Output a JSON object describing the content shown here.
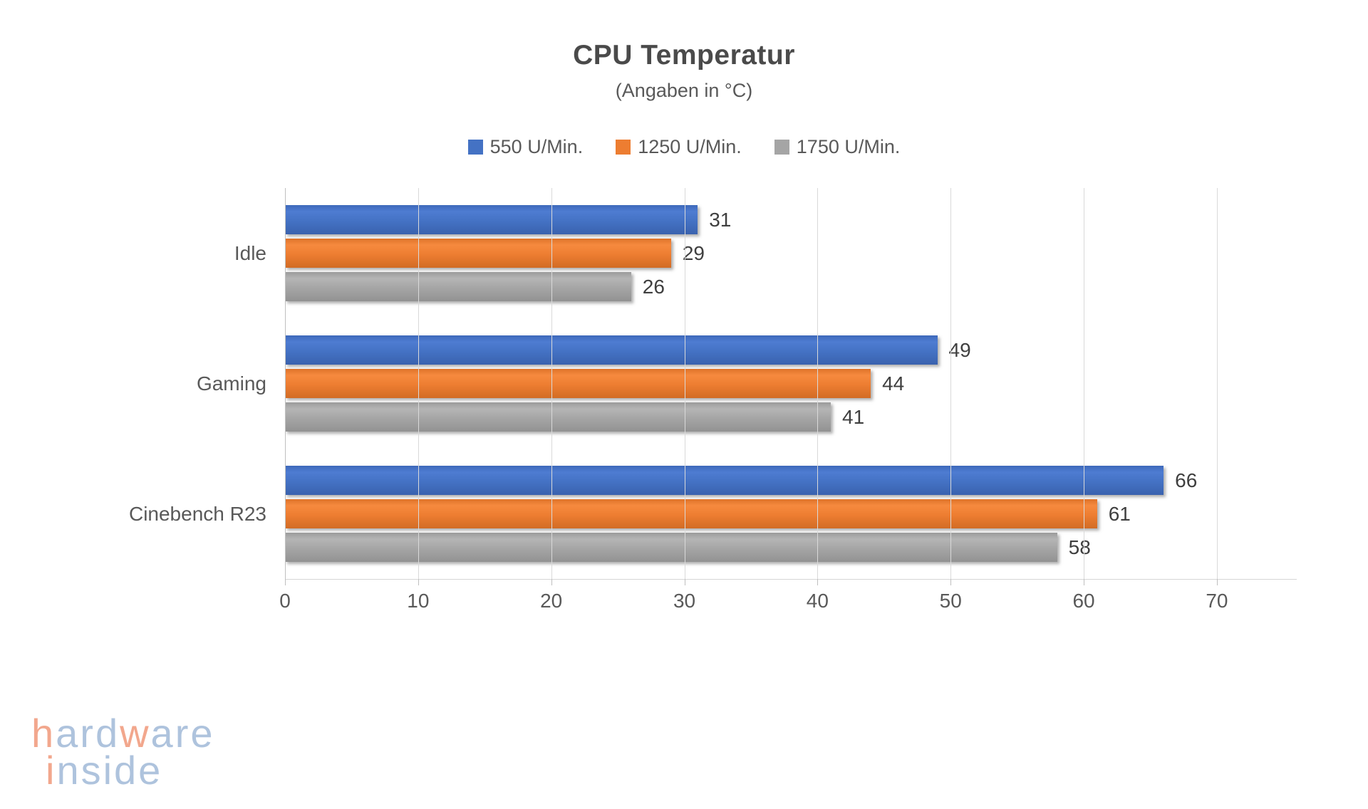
{
  "chart_data": {
    "type": "bar",
    "orientation": "horizontal",
    "title": "CPU Temperatur",
    "subtitle": "(Angaben in °C)",
    "categories": [
      "Idle",
      "Gaming",
      "Cinebench R23"
    ],
    "series": [
      {
        "name": "550 U/Min.",
        "color": "#4472C4",
        "gradient": {
          "top": "#3D69BA",
          "mid": "#4E7CD2",
          "base": "#4472C4",
          "bottom": "#3A62AE"
        },
        "values": [
          31,
          49,
          66
        ]
      },
      {
        "name": "1250 U/Min.",
        "color": "#ED7D31",
        "gradient": {
          "top": "#DE7329",
          "mid": "#F68A3F",
          "base": "#ED7D31",
          "bottom": "#D26C25"
        },
        "values": [
          29,
          44,
          61
        ]
      },
      {
        "name": "1750 U/Min.",
        "color": "#A5A5A5",
        "gradient": {
          "top": "#9B9B9B",
          "mid": "#B5B5B5",
          "base": "#A5A5A5",
          "bottom": "#929292"
        },
        "values": [
          26,
          41,
          58
        ]
      }
    ],
    "ticks": [
      0,
      10,
      20,
      30,
      40,
      50,
      60,
      70
    ],
    "xlim": [
      0,
      70
    ],
    "axis_extent": 76,
    "grid": true,
    "legend_position": "top",
    "value_labels": true,
    "gridline_color": "#D9D9D9"
  },
  "logo": {
    "line1": [
      {
        "text": "h",
        "color": "salmon"
      },
      {
        "text": "ard",
        "color": "blue"
      },
      {
        "text": "w",
        "color": "salmon"
      },
      {
        "text": "are",
        "color": "blue"
      }
    ],
    "line2": [
      {
        "text": "i",
        "color": "salmon"
      },
      {
        "text": "nside",
        "color": "blue"
      }
    ],
    "palette": {
      "salmon": "#F2A78D",
      "blue": "#AEC3DD"
    }
  }
}
